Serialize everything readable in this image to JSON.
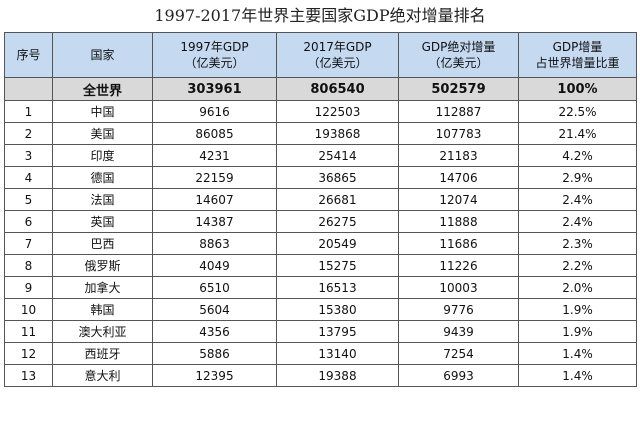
{
  "title": "1997-2017年世界主要国家GDP绝对增量排名",
  "headers": {
    "rank": "序号",
    "country": "国家",
    "gdp1997_line1": "1997年GDP",
    "gdp1997_line2": "（亿美元）",
    "gdp2017_line1": "2017年GDP",
    "gdp2017_line2": "（亿美元）",
    "increase_line1": "GDP绝对增量",
    "increase_line2": "（亿美元）",
    "share_line1": "GDP增量",
    "share_line2": "占世界增量比重"
  },
  "world": {
    "rank": "",
    "country": "全世界",
    "gdp1997": "303961",
    "gdp2017": "806540",
    "increase": "502579",
    "share": "100%"
  },
  "rows": [
    {
      "rank": "1",
      "country": "中国",
      "gdp1997": "9616",
      "gdp2017": "122503",
      "increase": "112887",
      "share": "22.5%"
    },
    {
      "rank": "2",
      "country": "美国",
      "gdp1997": "86085",
      "gdp2017": "193868",
      "increase": "107783",
      "share": "21.4%"
    },
    {
      "rank": "3",
      "country": "印度",
      "gdp1997": "4231",
      "gdp2017": "25414",
      "increase": "21183",
      "share": "4.2%"
    },
    {
      "rank": "4",
      "country": "德国",
      "gdp1997": "22159",
      "gdp2017": "36865",
      "increase": "14706",
      "share": "2.9%"
    },
    {
      "rank": "5",
      "country": "法国",
      "gdp1997": "14607",
      "gdp2017": "26681",
      "increase": "12074",
      "share": "2.4%"
    },
    {
      "rank": "6",
      "country": "英国",
      "gdp1997": "14387",
      "gdp2017": "26275",
      "increase": "11888",
      "share": "2.4%"
    },
    {
      "rank": "7",
      "country": "巴西",
      "gdp1997": "8863",
      "gdp2017": "20549",
      "increase": "11686",
      "share": "2.3%"
    },
    {
      "rank": "8",
      "country": "俄罗斯",
      "gdp1997": "4049",
      "gdp2017": "15275",
      "increase": "11226",
      "share": "2.2%"
    },
    {
      "rank": "9",
      "country": "加拿大",
      "gdp1997": "6510",
      "gdp2017": "16513",
      "increase": "10003",
      "share": "2.0%"
    },
    {
      "rank": "10",
      "country": "韩国",
      "gdp1997": "5604",
      "gdp2017": "15380",
      "increase": "9776",
      "share": "1.9%"
    },
    {
      "rank": "11",
      "country": "澳大利亚",
      "gdp1997": "4356",
      "gdp2017": "13795",
      "increase": "9439",
      "share": "1.9%"
    },
    {
      "rank": "12",
      "country": "西班牙",
      "gdp1997": "5886",
      "gdp2017": "13140",
      "increase": "7254",
      "share": "1.4%"
    },
    {
      "rank": "13",
      "country": "意大利",
      "gdp1997": "12395",
      "gdp2017": "19388",
      "increase": "6993",
      "share": "1.4%"
    }
  ]
}
